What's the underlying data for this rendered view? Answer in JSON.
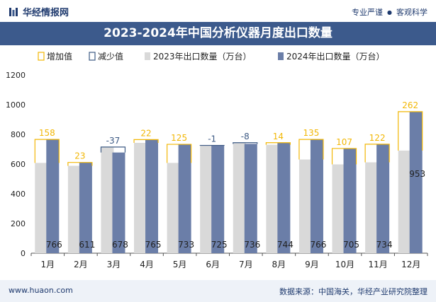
{
  "header": {
    "brand": "华经情报网",
    "tag_left": "专业严谨",
    "tag_right": "客观科学"
  },
  "title": "2023-2024年中国分析仪器月度出口数量",
  "footer": {
    "url": "www.huaon.com",
    "source": "数据来源：中国海关，华经产业研究院整理"
  },
  "colors": {
    "brand_blue": "#3c5a8c",
    "bar_2023": "#d9d9d9",
    "bar_2024": "#6b7ea8",
    "increase": "#f2b705",
    "decrease": "#3d5a84",
    "footer_bg": "#eef2f8"
  },
  "chart_data": {
    "type": "bar",
    "categories": [
      "1月",
      "2月",
      "3月",
      "4月",
      "5月",
      "6月",
      "7月",
      "8月",
      "9月",
      "10月",
      "11月",
      "12月"
    ],
    "series": [
      {
        "name": "2023年出口数量（万台）",
        "values": [
          608,
          588,
          715,
          743,
          608,
          726,
          744,
          730,
          631,
          598,
          612,
          691
        ]
      },
      {
        "name": "2024年出口数量（万台）",
        "values": [
          766,
          611,
          678,
          765,
          733,
          725,
          736,
          744,
          766,
          705,
          734,
          953
        ]
      }
    ],
    "change": [
      158,
      23,
      -37,
      22,
      125,
      -1,
      -8,
      14,
      135,
      107,
      122,
      262
    ],
    "change_labels": [
      "158",
      "23",
      "-37",
      "22",
      "125",
      "-1",
      "-8",
      "14",
      "135",
      "107",
      "122",
      "262"
    ],
    "legend": [
      "增加值",
      "减少值",
      "2023年出口数量（万台）",
      "2024年出口数量（万台）"
    ],
    "legend_position": "top",
    "y_ticks": [
      "0",
      "200",
      "400",
      "600",
      "800",
      "1000",
      "1200"
    ],
    "ylim": [
      0,
      1200
    ],
    "grid": false
  }
}
